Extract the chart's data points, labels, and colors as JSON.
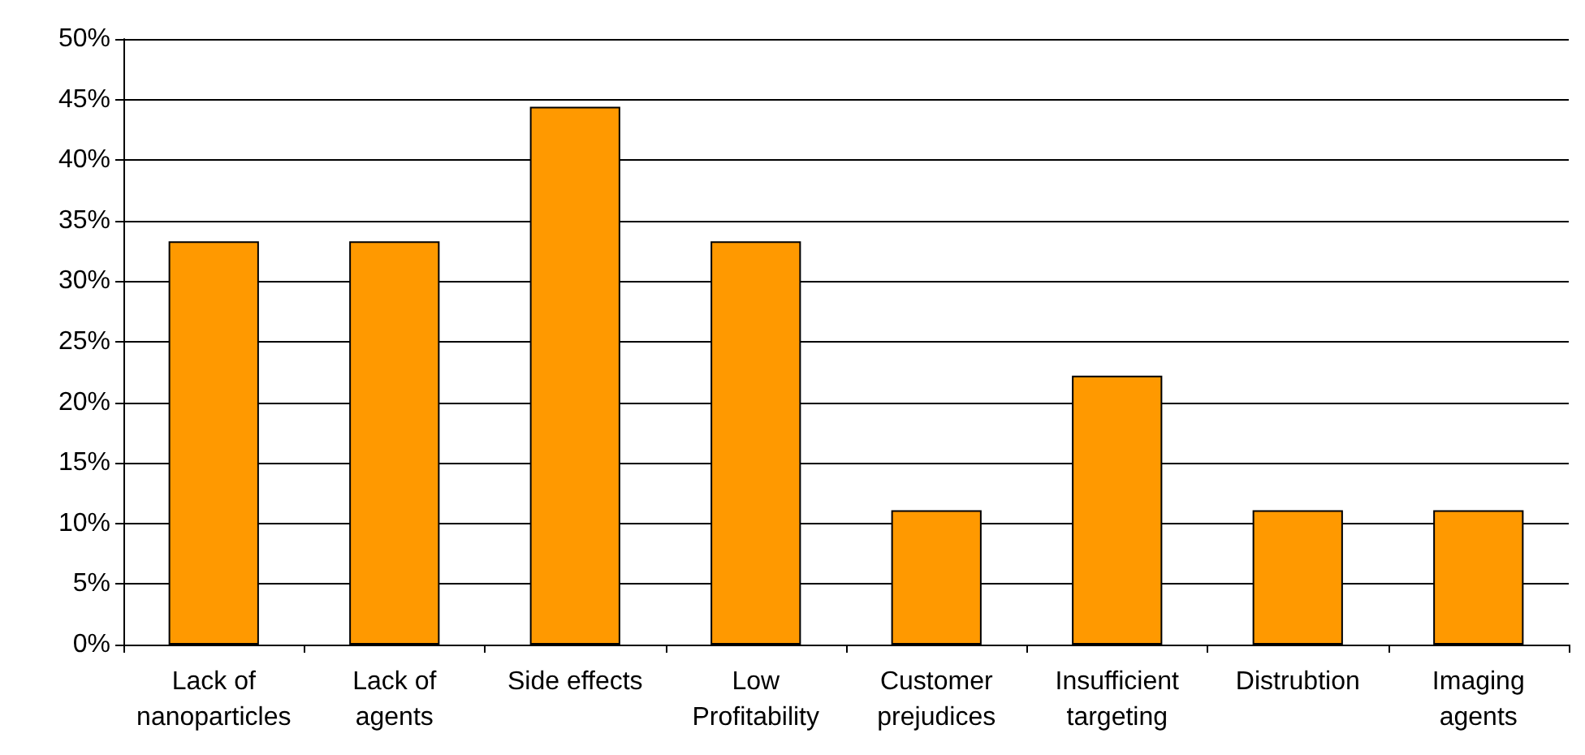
{
  "chart_data": {
    "type": "bar",
    "categories": [
      "Lack of\nnanoparticles",
      "Lack of\nagents",
      "Side effects",
      "Low\nProfitability",
      "Customer\nprejudices",
      "Insufficient\ntargeting",
      "Distrubtion",
      "Imaging\nagents"
    ],
    "values": [
      33.3,
      33.3,
      44.4,
      33.3,
      11.1,
      22.2,
      11.1,
      11.1
    ],
    "color": "#ff9900",
    "ylim": [
      0,
      50
    ],
    "yticks": [
      {
        "value": 0,
        "label": "0%"
      },
      {
        "value": 5,
        "label": "5%"
      },
      {
        "value": 10,
        "label": "10%"
      },
      {
        "value": 15,
        "label": "15%"
      },
      {
        "value": 20,
        "label": "20%"
      },
      {
        "value": 25,
        "label": "25%"
      },
      {
        "value": 30,
        "label": "30%"
      },
      {
        "value": 35,
        "label": "35%"
      },
      {
        "value": 40,
        "label": "40%"
      },
      {
        "value": 45,
        "label": "45%"
      },
      {
        "value": 50,
        "label": "50%"
      }
    ],
    "grid": "y"
  }
}
